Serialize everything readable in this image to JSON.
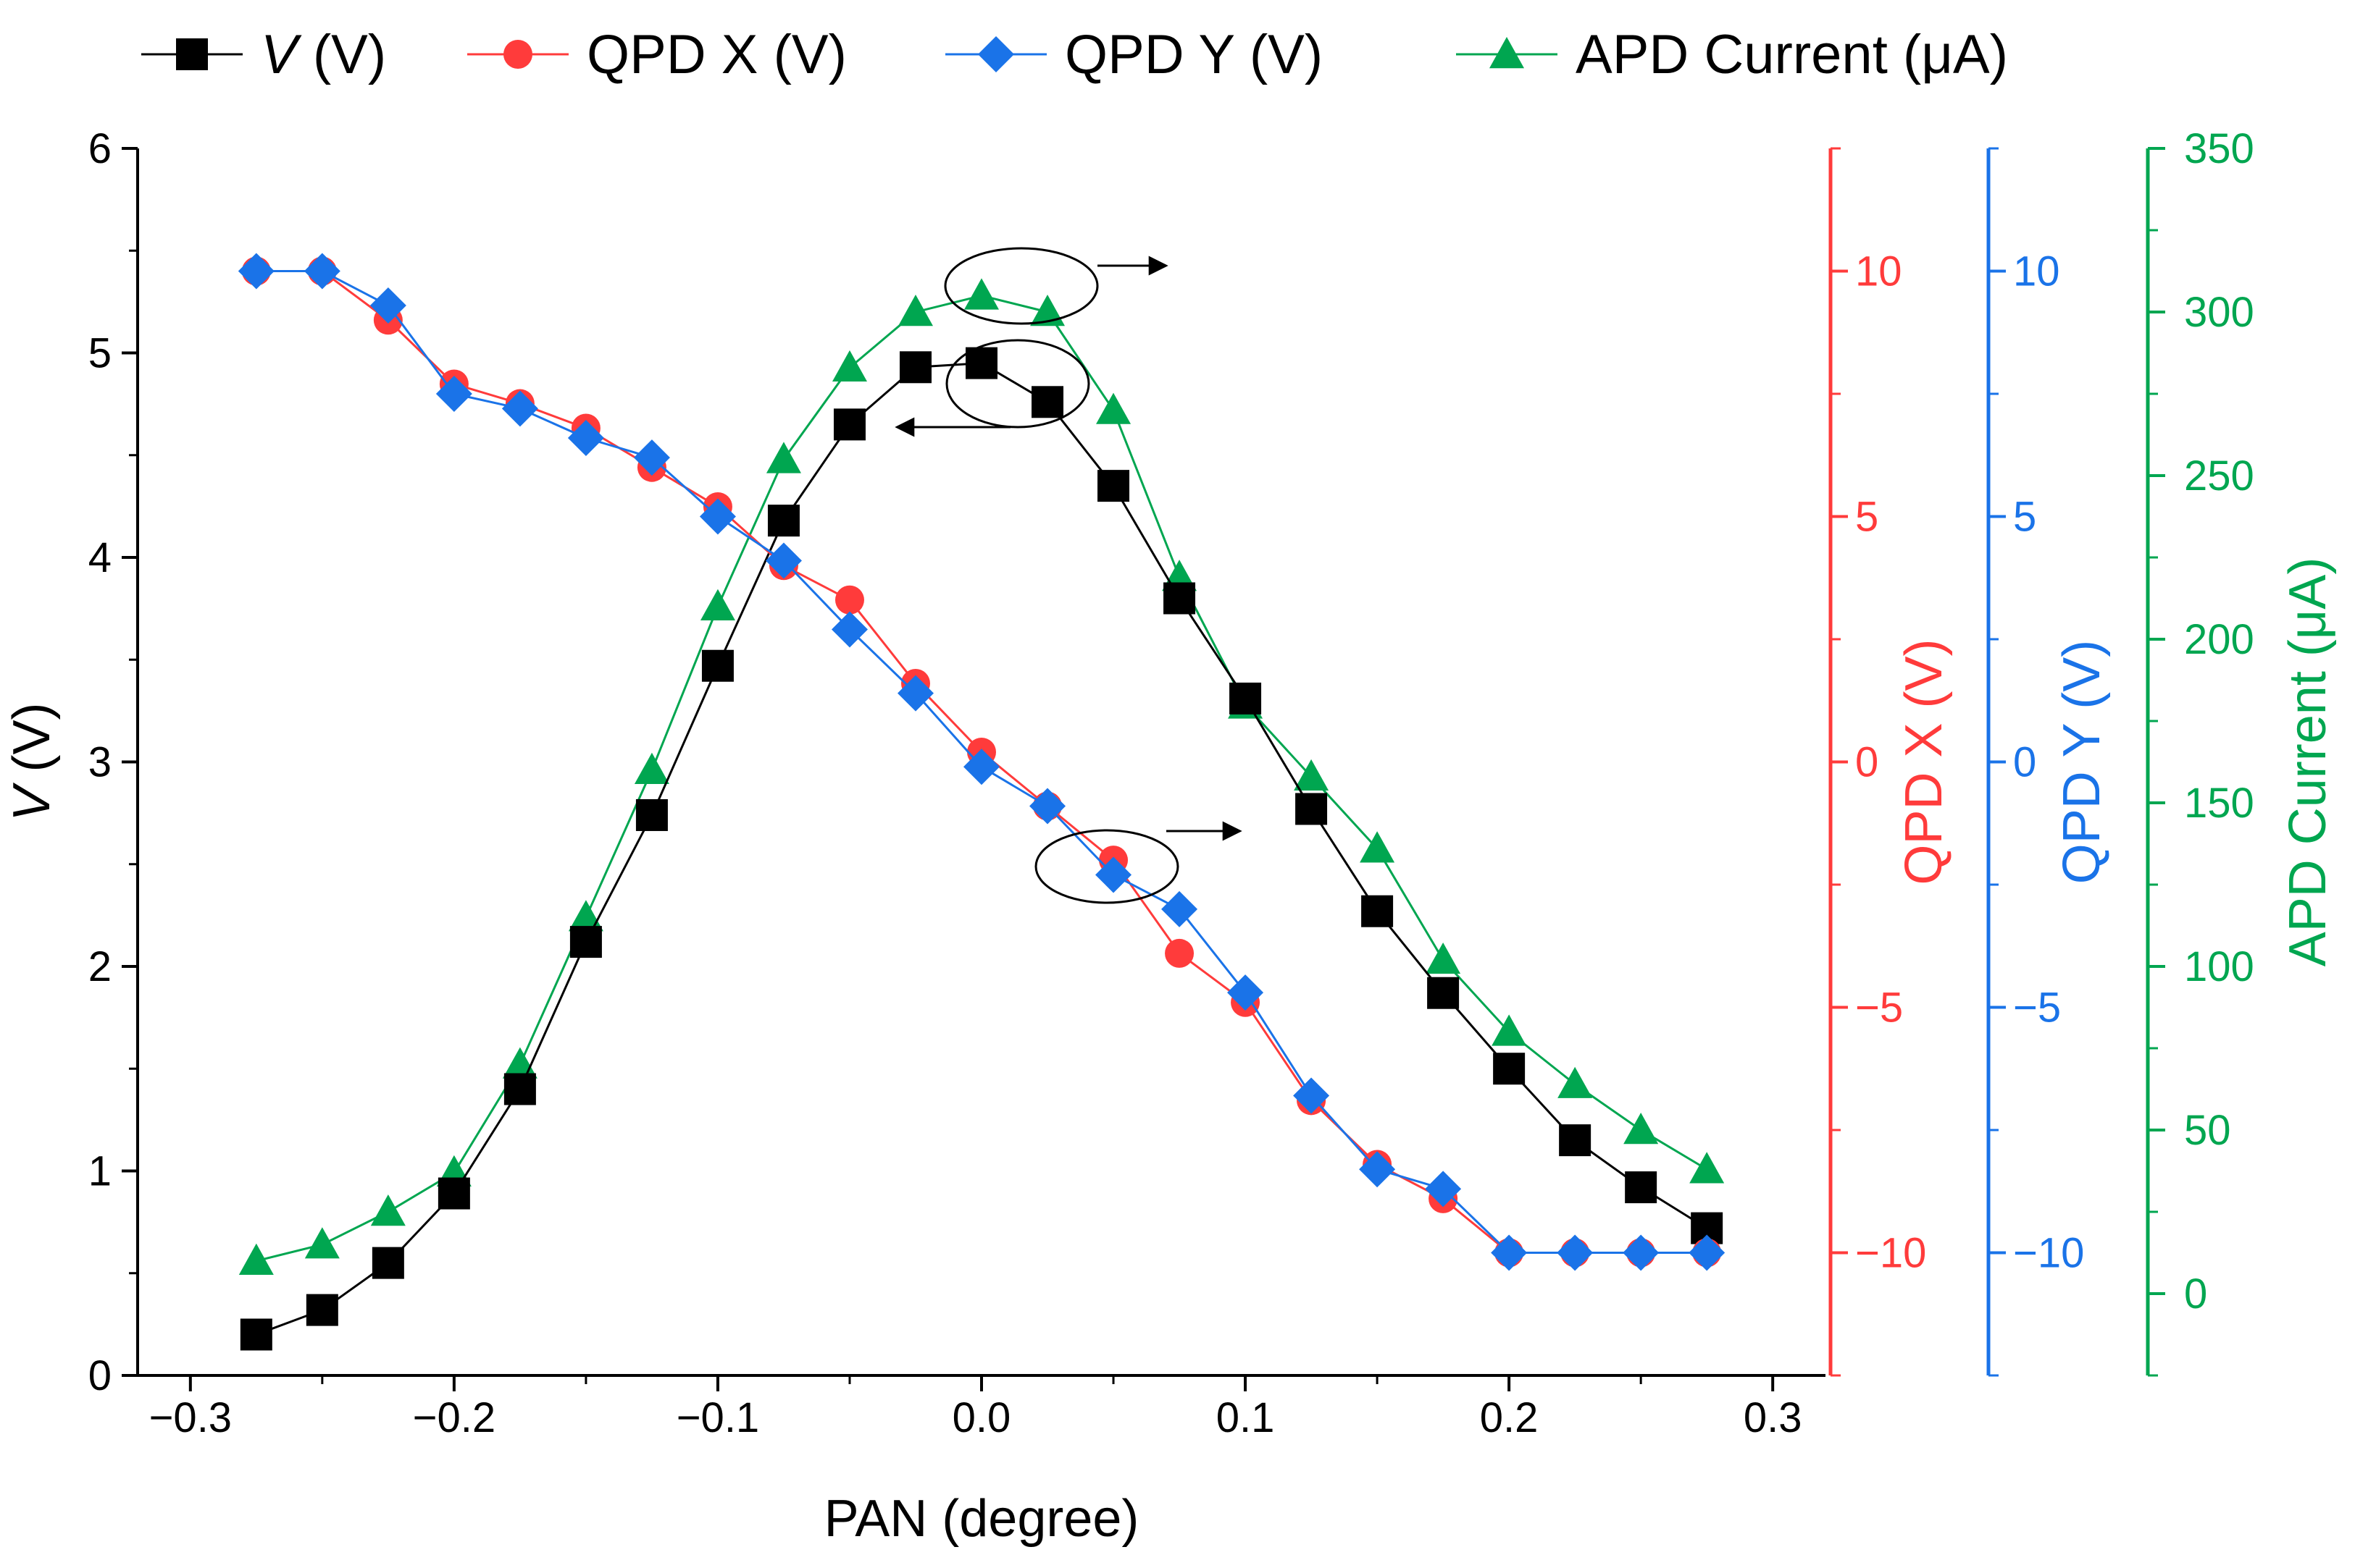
{
  "chart_data": {
    "type": "line",
    "x_label": "PAN (degree)",
    "x_range": [
      -0.32,
      0.32
    ],
    "x_ticks": [
      -0.3,
      -0.2,
      -0.1,
      0.0,
      0.1,
      0.2,
      0.3
    ],
    "x_tick_labels": [
      "−0.3",
      "−0.2",
      "−0.1",
      "0.0",
      "0.1",
      "0.2",
      "0.3"
    ],
    "x": [
      -0.275,
      -0.25,
      -0.225,
      -0.2,
      -0.175,
      -0.15,
      -0.125,
      -0.1,
      -0.075,
      -0.05,
      -0.025,
      0.0,
      0.025,
      0.05,
      0.075,
      0.1,
      0.125,
      0.15,
      0.175,
      0.2,
      0.225,
      0.25,
      0.275
    ],
    "axes": [
      {
        "id": "v",
        "side": "left",
        "label_italic": "V",
        "label_rest": " (V)",
        "range": [
          0,
          6
        ],
        "ticks": [
          0,
          1,
          2,
          3,
          4,
          5,
          6
        ],
        "tick_labels": [
          "0",
          "1",
          "2",
          "3",
          "4",
          "5",
          "6"
        ],
        "color": "#000000"
      },
      {
        "id": "qx",
        "side": "right",
        "label": "QPD X (V)",
        "range": [
          -12.5,
          12.5
        ],
        "ticks": [
          -10,
          -5,
          0,
          5,
          10
        ],
        "tick_labels": [
          "−10",
          "−5",
          "0",
          "5",
          "10"
        ],
        "color": "#ff3b3b"
      },
      {
        "id": "qy",
        "side": "right",
        "label": "QPD Y (V)",
        "range": [
          -12.5,
          12.5
        ],
        "ticks": [
          -10,
          -5,
          0,
          5,
          10
        ],
        "tick_labels": [
          "−10",
          "−5",
          "0",
          "5",
          "10"
        ],
        "color": "#1a73e8"
      },
      {
        "id": "apd",
        "side": "right",
        "label": "APD Current (μA)",
        "range": [
          -25,
          350
        ],
        "ticks": [
          0,
          50,
          100,
          150,
          200,
          250,
          300,
          350
        ],
        "tick_labels": [
          "0",
          "50",
          "100",
          "150",
          "200",
          "250",
          "300",
          "350"
        ],
        "color": "#00a650"
      }
    ],
    "series": [
      {
        "name": "V (V)",
        "legend_italic": "V",
        "legend_rest": " (V)",
        "axis": "v",
        "color": "#000000",
        "marker": "square",
        "values": [
          0.2,
          0.32,
          0.55,
          0.89,
          1.4,
          2.12,
          2.74,
          3.47,
          4.18,
          4.65,
          4.93,
          4.95,
          4.76,
          4.35,
          3.8,
          3.31,
          2.77,
          2.27,
          1.87,
          1.5,
          1.15,
          0.92,
          0.72
        ]
      },
      {
        "name": "QPD X (V)",
        "axis": "qx",
        "color": "#ff3b3b",
        "marker": "circle",
        "values": [
          10,
          10,
          9.0,
          7.7,
          7.3,
          6.8,
          6.0,
          5.2,
          4.0,
          3.3,
          1.6,
          0.2,
          -0.9,
          -2.0,
          -3.9,
          -4.9,
          -6.9,
          -8.2,
          -8.9,
          -10,
          -10,
          -10,
          -10
        ]
      },
      {
        "name": "QPD Y (V)",
        "axis": "qy",
        "color": "#1a73e8",
        "marker": "diamond",
        "values": [
          10,
          10,
          9.3,
          7.5,
          7.2,
          6.6,
          6.2,
          5.0,
          4.1,
          2.7,
          1.4,
          -0.1,
          -0.9,
          -2.3,
          -3.0,
          -4.7,
          -6.8,
          -8.3,
          -8.7,
          -10,
          -10,
          -10,
          -10
        ]
      },
      {
        "name": "APD Current (μA)",
        "axis": "apd",
        "color": "#00a650",
        "marker": "triangle",
        "values": [
          10,
          15,
          25,
          37,
          70,
          115,
          160,
          210,
          255,
          283,
          300,
          305,
          300,
          270,
          219,
          180,
          158,
          136,
          102,
          80,
          64,
          50,
          38
        ]
      }
    ],
    "annotations": [
      {
        "target": "APD Current",
        "direction": "right"
      },
      {
        "target": "V",
        "direction": "left"
      },
      {
        "target": "QPD",
        "direction": "right"
      }
    ],
    "legend_position": "top",
    "grid": false
  }
}
